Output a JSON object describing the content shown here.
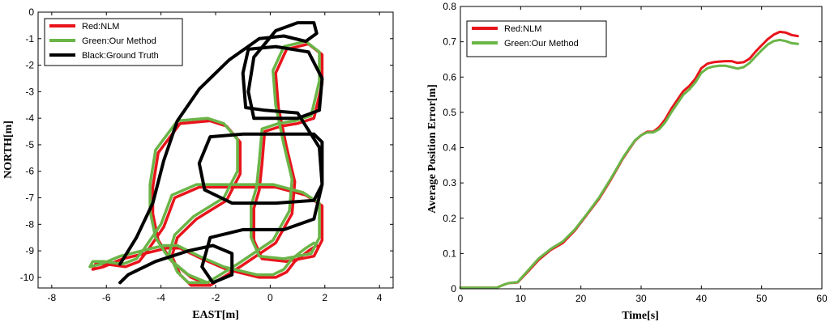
{
  "chart_data": [
    {
      "type": "line",
      "xlabel": "EAST[m]",
      "ylabel": "NORTH[m]",
      "xlim": [
        -8.5,
        4.5
      ],
      "ylim": [
        -10.4,
        0
      ],
      "xticks": [
        -8,
        -6,
        -4,
        -2,
        0,
        2,
        4
      ],
      "yticks": [
        0,
        -1,
        -2,
        -3,
        -4,
        -5,
        -6,
        -7,
        -8,
        -9,
        -10
      ],
      "legend_position": "top-left",
      "series": [
        {
          "name": "Red:NLM",
          "color": "#e8141b",
          "x": [
            -2.2,
            -2.9,
            -3.6,
            -4.1,
            -4.3,
            -4.3,
            -4.1,
            -3.3,
            -2.2,
            -1.6,
            -1.1,
            -1.1,
            -1.6,
            -2.7,
            -3.4,
            -3.6,
            -3.3,
            -2.9,
            -2.2,
            -1.1,
            0.2,
            0.8,
            0.9,
            0.6,
            0.3,
            0.2,
            0.6,
            1.4,
            1.9,
            1.9,
            1.6,
            1.0,
            0.4,
            -0.2,
            -0.3,
            -0.4,
            -0.6,
            -0.6,
            -0.3,
            0.6,
            1.6,
            1.9,
            1.9,
            1.3,
            0.2,
            -1.2,
            -2.6,
            -3.5,
            -3.9,
            -4.5,
            -4.8,
            -5.3,
            -6.0,
            -6.4,
            -6.5,
            -6.1,
            -5.4,
            -4.6,
            -3.8,
            -3.3,
            -2.5,
            -1.6,
            -0.4,
            0.2,
            0.6,
            0.9,
            1.4,
            1.7
          ],
          "y": [
            -10.3,
            -10.0,
            -9.4,
            -8.6,
            -7.6,
            -6.6,
            -5.3,
            -4.2,
            -4.1,
            -4.3,
            -4.9,
            -6.1,
            -7.1,
            -7.8,
            -8.5,
            -9.2,
            -9.9,
            -10.3,
            -10.3,
            -9.6,
            -8.7,
            -7.6,
            -6.4,
            -5.1,
            -3.6,
            -2.3,
            -1.4,
            -1.2,
            -1.6,
            -2.7,
            -4.0,
            -4.2,
            -4.3,
            -4.5,
            -5.7,
            -6.7,
            -7.4,
            -8.6,
            -9.3,
            -9.4,
            -9.2,
            -8.6,
            -7.3,
            -6.9,
            -6.6,
            -6.6,
            -6.6,
            -7.0,
            -8.1,
            -9.0,
            -9.4,
            -9.6,
            -9.5,
            -9.5,
            -9.7,
            -9.6,
            -9.3,
            -9.1,
            -8.9,
            -8.9,
            -9.3,
            -9.7,
            -10.0,
            -10.0,
            -9.8,
            -9.4,
            -9.0,
            -8.8
          ]
        },
        {
          "name": "Green:Our Method",
          "color": "#6ab547",
          "x": [
            -2.3,
            -3.0,
            -3.7,
            -4.2,
            -4.4,
            -4.4,
            -4.2,
            -3.4,
            -2.3,
            -1.7,
            -1.2,
            -1.2,
            -1.7,
            -2.8,
            -3.5,
            -3.7,
            -3.4,
            -3.0,
            -2.3,
            -1.2,
            0.1,
            0.7,
            0.8,
            0.5,
            0.2,
            0.1,
            0.5,
            1.3,
            1.8,
            1.8,
            1.5,
            0.9,
            0.3,
            -0.3,
            -0.4,
            -0.5,
            -0.7,
            -0.7,
            -0.4,
            0.5,
            1.5,
            1.8,
            1.8,
            1.2,
            0.1,
            -1.3,
            -2.7,
            -3.6,
            -4.0,
            -4.6,
            -4.9,
            -5.4,
            -6.1,
            -6.5,
            -6.6,
            -6.2,
            -5.5,
            -4.7,
            -3.9,
            -3.4,
            -2.6,
            -1.7,
            -0.5,
            0.1,
            0.5,
            0.8,
            1.3,
            1.6
          ],
          "y": [
            -10.2,
            -9.9,
            -9.3,
            -8.5,
            -7.5,
            -6.5,
            -5.2,
            -4.1,
            -4.0,
            -4.2,
            -4.8,
            -6.0,
            -7.0,
            -7.7,
            -8.4,
            -9.1,
            -9.8,
            -10.2,
            -10.2,
            -9.5,
            -8.6,
            -7.5,
            -6.3,
            -5.0,
            -3.5,
            -2.2,
            -1.3,
            -1.1,
            -1.5,
            -2.6,
            -3.9,
            -4.1,
            -4.2,
            -4.4,
            -5.6,
            -6.6,
            -7.3,
            -8.5,
            -9.2,
            -9.3,
            -9.1,
            -8.5,
            -7.2,
            -6.8,
            -6.5,
            -6.5,
            -6.5,
            -6.9,
            -8.0,
            -8.9,
            -9.3,
            -9.5,
            -9.4,
            -9.4,
            -9.6,
            -9.5,
            -9.2,
            -9.0,
            -8.8,
            -8.8,
            -9.2,
            -9.6,
            -9.9,
            -9.9,
            -9.7,
            -9.3,
            -8.9,
            -8.7
          ]
        },
        {
          "name": "Black:Ground Truth",
          "color": "#000000",
          "x": [
            -5.5,
            -5.2,
            -4.2,
            -3.0,
            -2.1,
            -1.4,
            -1.4,
            -2.1,
            -2.5,
            -2.2,
            -1.0,
            0.5,
            1.6,
            1.9,
            1.9,
            1.6,
            0.5,
            -1.0,
            -2.2,
            -2.6,
            -2.4,
            -1.4,
            0.2,
            1.6,
            1.9,
            1.8,
            1.0,
            -0.2,
            -0.9,
            -1.0,
            -0.8,
            0.2,
            1.4,
            1.9,
            1.8,
            1.0,
            0.0,
            -0.6,
            -0.8,
            -0.6,
            0.2,
            1.0,
            1.6,
            1.7,
            1.3,
            0.5,
            -0.4,
            -1.5,
            -2.6,
            -3.4,
            -3.9,
            -4.3,
            -4.9,
            -5.5
          ],
          "y": [
            -10.2,
            -9.9,
            -9.4,
            -9.0,
            -8.8,
            -9.1,
            -9.9,
            -10.2,
            -9.6,
            -8.5,
            -8.2,
            -8.2,
            -7.8,
            -6.5,
            -4.9,
            -4.6,
            -4.6,
            -4.6,
            -4.7,
            -5.7,
            -6.7,
            -7.2,
            -7.2,
            -7.1,
            -6.5,
            -5.1,
            -3.8,
            -3.7,
            -3.6,
            -2.3,
            -1.4,
            -1.3,
            -1.5,
            -2.5,
            -3.7,
            -4.0,
            -4.0,
            -4.0,
            -3.0,
            -1.7,
            -0.7,
            -0.4,
            -0.4,
            -0.8,
            -1.1,
            -0.9,
            -1.0,
            -1.8,
            -2.9,
            -4.1,
            -5.6,
            -7.2,
            -8.5,
            -9.5
          ]
        }
      ]
    },
    {
      "type": "line",
      "xlabel": "Time[s]",
      "ylabel": "Average Position Error[m]",
      "xlim": [
        0,
        60
      ],
      "ylim": [
        0,
        0.8
      ],
      "xticks": [
        0,
        10,
        20,
        30,
        40,
        50,
        60
      ],
      "yticks": [
        0,
        0.1,
        0.2,
        0.3,
        0.4,
        0.5,
        0.6,
        0.7,
        0.8
      ],
      "legend_position": "top-left",
      "series": [
        {
          "name": "Red:NLM",
          "color": "#e8141b",
          "x": [
            0,
            6,
            7,
            8,
            9.5,
            11,
            13,
            15,
            17,
            19,
            21,
            23,
            25,
            27,
            28,
            29,
            30,
            31,
            32,
            33,
            34,
            35,
            36,
            37,
            38,
            39,
            40,
            41,
            42,
            43,
            44,
            45,
            46,
            47,
            48,
            49,
            50,
            51,
            52,
            53,
            54,
            55,
            56
          ],
          "y": [
            0.003,
            0.003,
            0.01,
            0.016,
            0.018,
            0.045,
            0.082,
            0.11,
            0.13,
            0.165,
            0.21,
            0.255,
            0.31,
            0.37,
            0.395,
            0.42,
            0.435,
            0.445,
            0.445,
            0.458,
            0.48,
            0.51,
            0.535,
            0.56,
            0.575,
            0.595,
            0.625,
            0.638,
            0.642,
            0.644,
            0.645,
            0.645,
            0.64,
            0.642,
            0.652,
            0.672,
            0.69,
            0.707,
            0.72,
            0.728,
            0.726,
            0.719,
            0.716
          ]
        },
        {
          "name": "Green:Our Method",
          "color": "#6ab547",
          "x": [
            0,
            6,
            7,
            8,
            9.5,
            11,
            13,
            15,
            17,
            19,
            21,
            23,
            25,
            27,
            28,
            29,
            30,
            31,
            32,
            33,
            34,
            35,
            36,
            37,
            38,
            39,
            40,
            41,
            42,
            43,
            44,
            45,
            46,
            47,
            48,
            49,
            50,
            51,
            52,
            53,
            54,
            55,
            56
          ],
          "y": [
            0.003,
            0.003,
            0.01,
            0.016,
            0.019,
            0.048,
            0.086,
            0.113,
            0.134,
            0.168,
            0.212,
            0.258,
            0.313,
            0.372,
            0.397,
            0.421,
            0.435,
            0.443,
            0.443,
            0.452,
            0.472,
            0.5,
            0.525,
            0.55,
            0.565,
            0.585,
            0.612,
            0.625,
            0.63,
            0.632,
            0.632,
            0.628,
            0.624,
            0.628,
            0.64,
            0.658,
            0.676,
            0.692,
            0.702,
            0.705,
            0.702,
            0.696,
            0.694
          ]
        }
      ]
    }
  ]
}
